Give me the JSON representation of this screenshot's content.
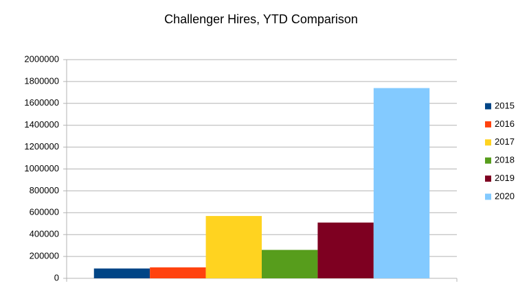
{
  "chart_data": {
    "type": "bar",
    "title": "Challenger Hires, YTD Comparison",
    "categories": [
      null
    ],
    "series": [
      {
        "name": "2015",
        "color": "#004586",
        "values": [
          90000
        ]
      },
      {
        "name": "2016",
        "color": "#ff420e",
        "values": [
          100000
        ]
      },
      {
        "name": "2017",
        "color": "#ffd320",
        "values": [
          570000
        ]
      },
      {
        "name": "2018",
        "color": "#579d1c",
        "values": [
          260000
        ]
      },
      {
        "name": "2019",
        "color": "#7e0021",
        "values": [
          510000
        ]
      },
      {
        "name": "2020",
        "color": "#83caff",
        "values": [
          1740000
        ]
      }
    ],
    "ylim": [
      0,
      2000000
    ],
    "yticks": [
      0,
      200000,
      400000,
      600000,
      800000,
      1000000,
      1200000,
      1400000,
      1600000,
      1800000,
      2000000
    ],
    "grid": true,
    "legend": "right"
  }
}
